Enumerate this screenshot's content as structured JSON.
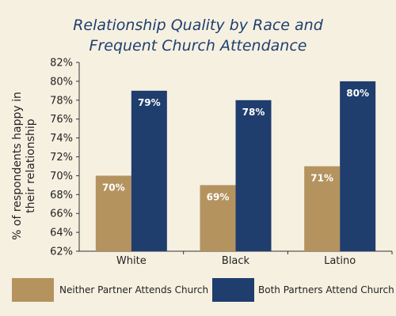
{
  "chart_data": {
    "type": "bar",
    "title": "Relationship Quality by Race and Frequent Church Attendance",
    "title_lines": [
      "Relationship Quality by Race and",
      "Frequent Church Attendance"
    ],
    "ylabel": "% of respondents happy in their relationship",
    "ylabel_lines": [
      "% of respondents happy in",
      "their relationship"
    ],
    "xlabel": "",
    "categories": [
      "White",
      "Black",
      "Latino"
    ],
    "ylim": [
      62,
      82
    ],
    "yticks": [
      "62%",
      "64%",
      "66%",
      "68%",
      "70%",
      "72%",
      "74%",
      "76%",
      "78%",
      "80%",
      "82%"
    ],
    "ytick_values": [
      62,
      64,
      66,
      68,
      70,
      72,
      74,
      76,
      78,
      80,
      82
    ],
    "grid": false,
    "legend_position": "bottom",
    "series": [
      {
        "name": "Neither Partner Attends Church",
        "values": [
          70,
          69,
          71
        ],
        "labels": [
          "70%",
          "69%",
          "71%"
        ],
        "color": "#b4935f",
        "label_color": "#ffffff"
      },
      {
        "name": "Both Partners Attend Church",
        "values": [
          79,
          78,
          80
        ],
        "labels": [
          "79%",
          "78%",
          "80%"
        ],
        "color": "#1f3d6d",
        "label_color": "#ffffff"
      }
    ]
  }
}
